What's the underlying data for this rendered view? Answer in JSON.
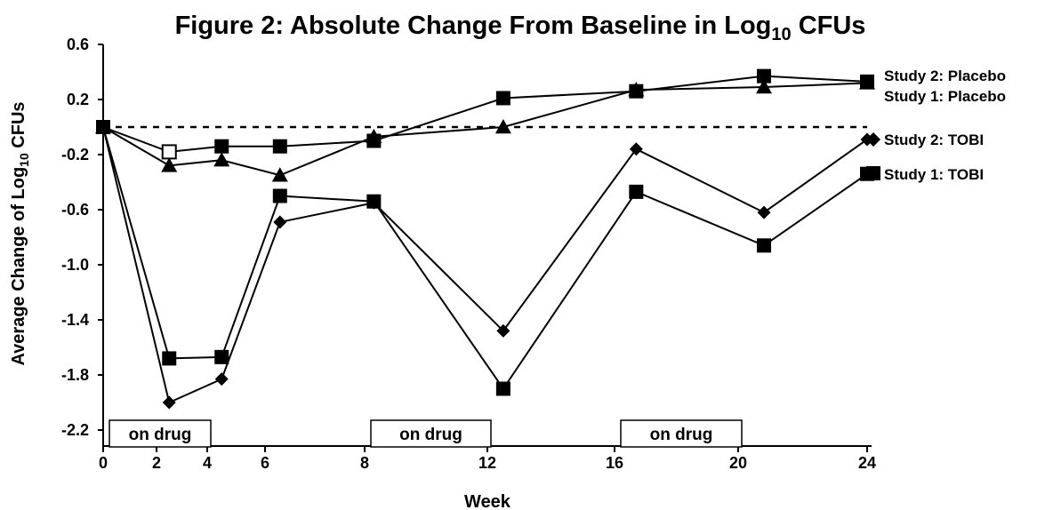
{
  "chart_data": {
    "type": "line",
    "title": {
      "main": "Figure 2: Absolute Change From Baseline in Log",
      "subscript": "10",
      "suffix": " CFUs"
    },
    "xlabel": "Week",
    "ylabel": {
      "main": "Average Change of Log",
      "subscript": "10",
      "suffix": " CFUs"
    },
    "ylim": [
      -2.2,
      0.6
    ],
    "y_ticks": [
      "0.6",
      "0.2",
      "-0.2",
      "-0.6",
      "-1.0",
      "-1.4",
      "-1.8",
      "-2.2"
    ],
    "y_tick_values": [
      0.6,
      0.2,
      -0.2,
      -0.6,
      -1.0,
      -1.4,
      -1.8,
      -2.2
    ],
    "x_ticks": [
      "0",
      "2",
      "4",
      "6",
      "8",
      "12",
      "16",
      "20",
      "24"
    ],
    "reference_line": 0,
    "on_drug_periods": [
      {
        "label": "on drug",
        "from": "0",
        "to": "4"
      },
      {
        "label": "on drug",
        "from": "8",
        "to": "12"
      },
      {
        "label": "on drug",
        "from": "16",
        "to": "20"
      }
    ],
    "x": [
      0,
      2.5,
      4.5,
      6.3,
      8.3,
      12.5,
      16.7,
      20.8,
      24
    ],
    "series": [
      {
        "name": "Study 2: Placebo",
        "marker": "square",
        "values": [
          0.0,
          -0.18,
          -0.14,
          -0.14,
          -0.1,
          0.21,
          0.26,
          0.37,
          0.33
        ]
      },
      {
        "name": "Study 1: Placebo",
        "marker": "triangle",
        "values": [
          0.0,
          -0.28,
          -0.24,
          -0.35,
          -0.07,
          0.0,
          0.27,
          0.29,
          0.32
        ]
      },
      {
        "name": "Study 2: TOBI",
        "marker": "diamond",
        "values": [
          0.0,
          -2.0,
          -1.83,
          -0.69,
          -0.55,
          -1.48,
          -0.16,
          -0.62,
          -0.09
        ]
      },
      {
        "name": "Study 1: TOBI",
        "marker": "square",
        "values": [
          0.0,
          -1.68,
          -1.67,
          -0.5,
          -0.54,
          -1.9,
          -0.47,
          -0.86,
          -0.34
        ]
      }
    ]
  }
}
